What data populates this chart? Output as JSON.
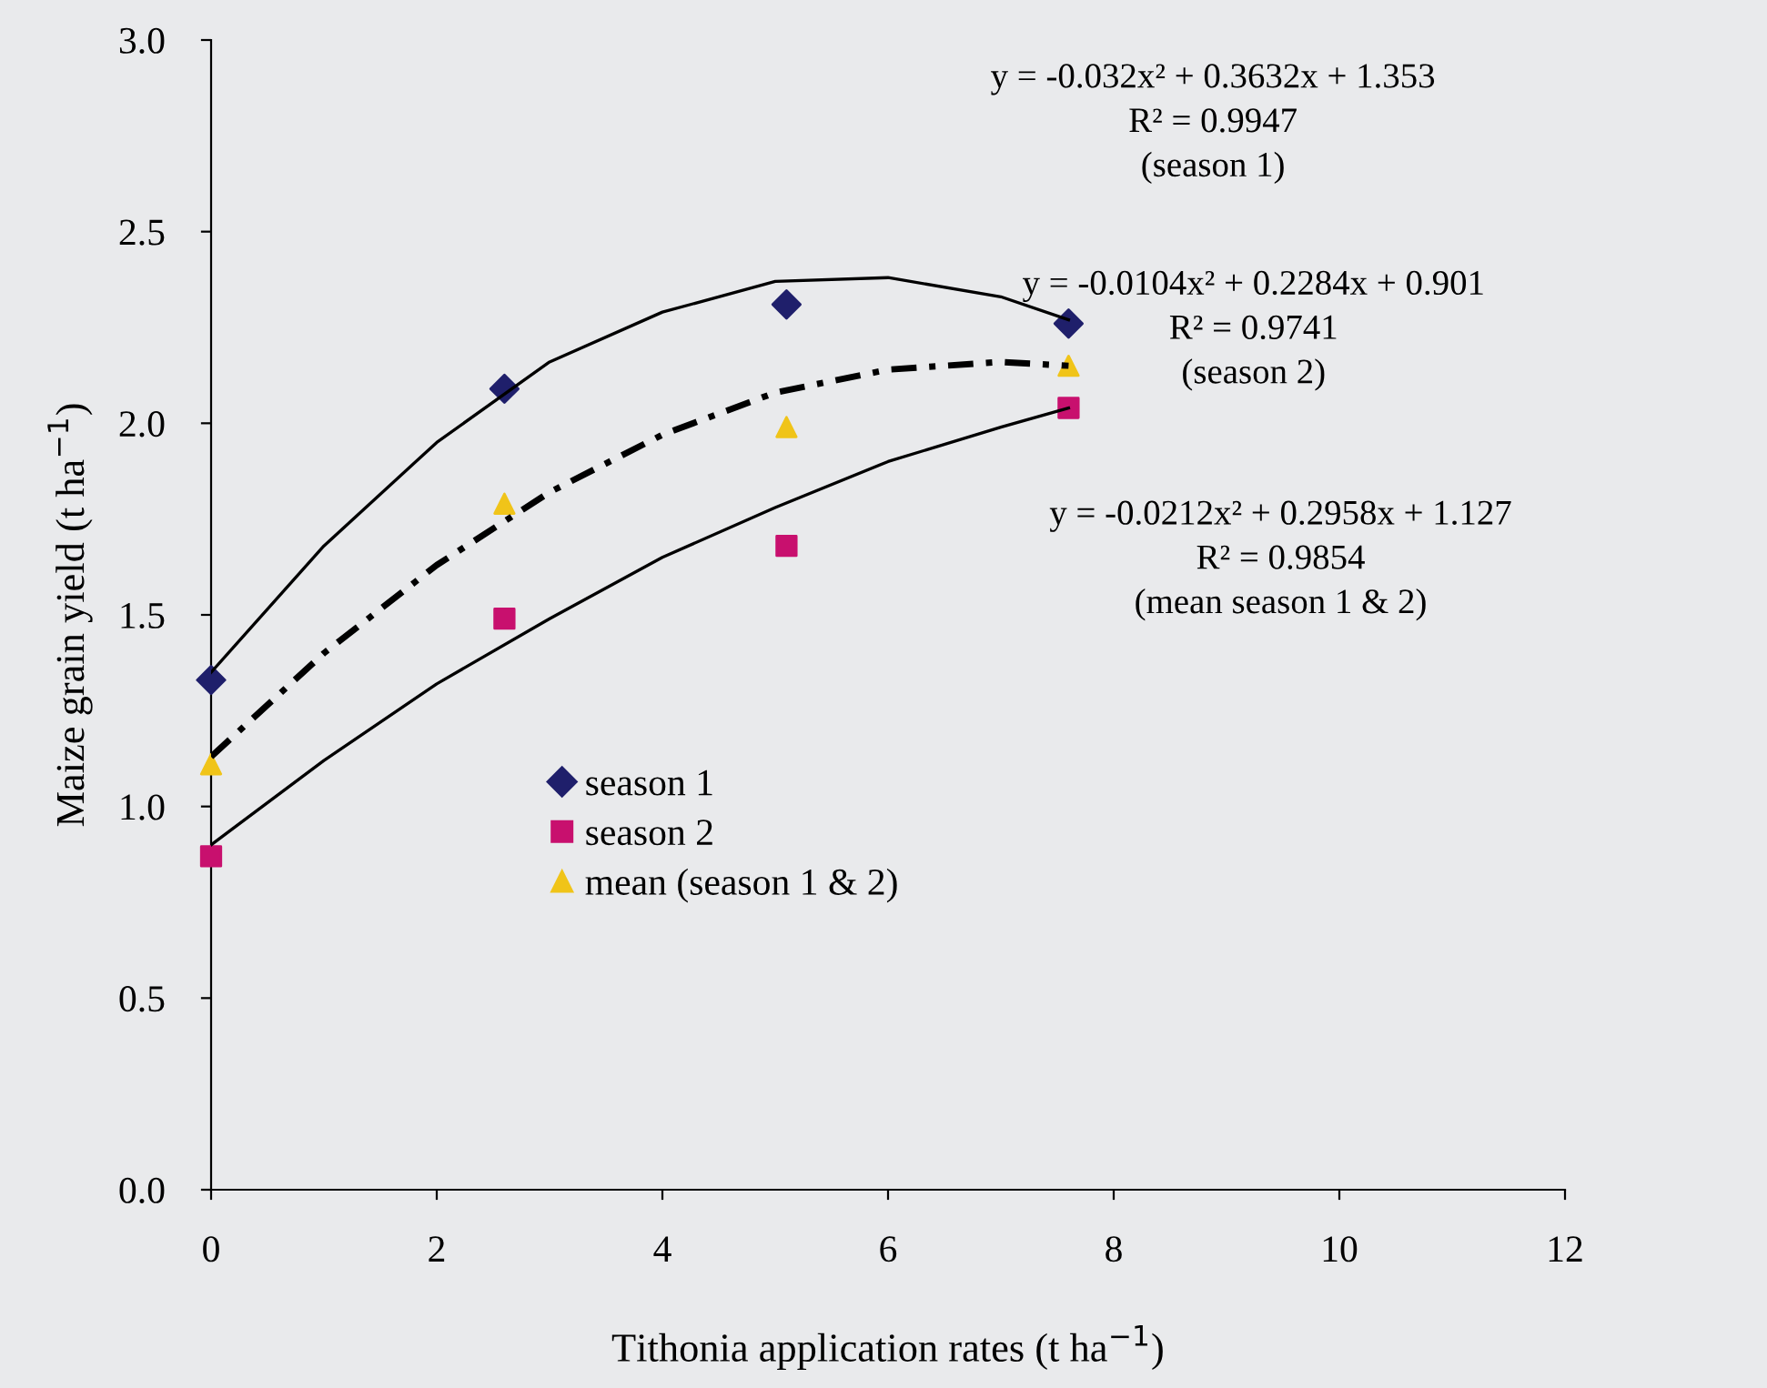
{
  "chart_data": {
    "type": "scatter",
    "xlabel": "Tithonia application rates (t ha$^{−1}$)",
    "ylabel": "Maize grain yield (t ha$^{−1}$)",
    "xlim": [
      0,
      12
    ],
    "xticks": [
      0,
      2,
      4,
      6,
      8,
      10,
      12
    ],
    "ylim": [
      0,
      3
    ],
    "yticks": [
      {
        "value": 0,
        "label": "0.0"
      },
      {
        "value": 0.5,
        "label": "0.5"
      },
      {
        "value": 1,
        "label": "1.0"
      },
      {
        "value": 1.5,
        "label": "1.5"
      },
      {
        "value": 2,
        "label": "2.0"
      },
      {
        "value": 2.5,
        "label": "2.5"
      },
      {
        "value": 3,
        "label": "3.0"
      }
    ],
    "grid": false,
    "legend": "bottom left",
    "x": [
      0,
      2.6,
      5.1,
      7.6
    ],
    "series": [
      {
        "name": "season 1",
        "color": "#1f1f6b",
        "marker": "diamond",
        "values": [
          1.33,
          2.09,
          2.31,
          2.26
        ]
      },
      {
        "name": "season 2",
        "color": "#c8106e",
        "marker": "square",
        "values": [
          0.87,
          1.49,
          1.68,
          2.04
        ]
      },
      {
        "name": "mean (season 1 & 2)",
        "color": "#f0c419",
        "marker": "triangle",
        "values": [
          1.11,
          1.79,
          1.99,
          2.15
        ]
      },
      {
        "type": "line",
        "color": "#000000",
        "line_style": "solid",
        "marker": "none",
        "x": [
          0,
          1,
          2,
          3,
          4,
          5,
          6,
          7,
          7.6
        ],
        "values": [
          1.35,
          1.68,
          1.95,
          2.16,
          2.29,
          2.37,
          2.38,
          2.33,
          2.27
        ]
      },
      {
        "type": "line",
        "color": "#000000",
        "line_style": "solid",
        "marker": "none",
        "x": [
          0,
          1,
          2,
          3,
          4,
          5,
          6,
          7,
          7.6
        ],
        "values": [
          0.9,
          1.12,
          1.32,
          1.49,
          1.65,
          1.78,
          1.9,
          1.99,
          2.04
        ]
      },
      {
        "type": "line",
        "color": "#000000",
        "line_style": "dashed",
        "marker": "none",
        "x": [
          0,
          1,
          2,
          3,
          4,
          5,
          6,
          7,
          7.6
        ],
        "values": [
          1.13,
          1.4,
          1.63,
          1.82,
          1.97,
          2.08,
          2.14,
          2.16,
          2.15
        ]
      }
    ],
    "annotations": [
      "y = -0.032x² + 0.3632x + 1.353\nR² = 0.9947\n(season 1)",
      "y = -0.0104x² + 0.2284x + 0.901\nR² = 0.9741\n(season 2)",
      "y = -0.0212x² + 0.2958x + 1.127\nR² = 0.9854\n(mean season 1 & 2)"
    ]
  }
}
